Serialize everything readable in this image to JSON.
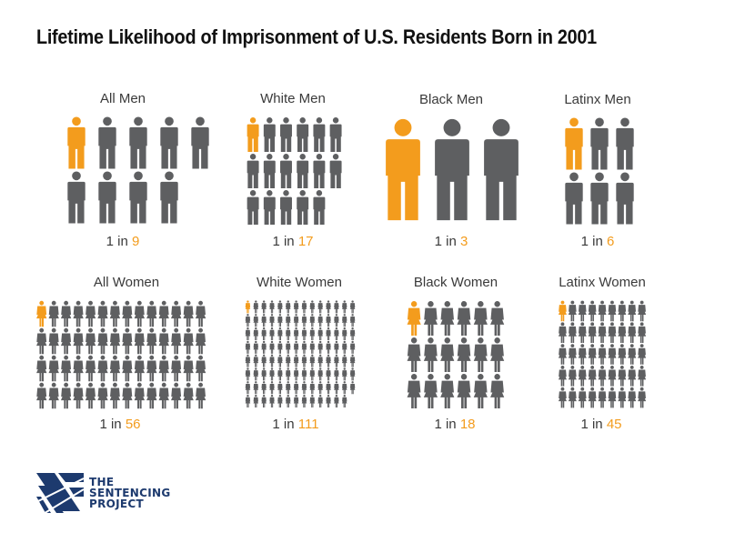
{
  "colors": {
    "highlight": "#f39c1d",
    "figure": "#5e5f61",
    "brand": "#1d3a6e"
  },
  "chart_data": {
    "type": "pictograph",
    "title": "Lifetime Likelihood of Imprisonment of U.S. Residents Born in 2001",
    "panels": [
      {
        "id": "all-men",
        "label": "All Men",
        "prefix": "1 in ",
        "value": 9,
        "figure": "man"
      },
      {
        "id": "white-men",
        "label": "White Men",
        "prefix": "1 in ",
        "value": 17,
        "figure": "man"
      },
      {
        "id": "black-men",
        "label": "Black Men",
        "prefix": "1 in ",
        "value": 3,
        "figure": "man"
      },
      {
        "id": "latinx-men",
        "label": "Latinx Men",
        "prefix": "1 in ",
        "value": 6,
        "figure": "man"
      },
      {
        "id": "all-women",
        "label": "All Women",
        "prefix": "1 in ",
        "value": 56,
        "figure": "woman"
      },
      {
        "id": "white-women",
        "label": "White Women",
        "prefix": "1 in ",
        "value": 111,
        "figure": "woman"
      },
      {
        "id": "black-women",
        "label": "Black Women",
        "prefix": "1 in ",
        "value": 18,
        "figure": "woman"
      },
      {
        "id": "latinx-women",
        "label": "Latinx Women",
        "prefix": "1 in ",
        "value": 45,
        "figure": "woman"
      }
    ]
  },
  "logo": {
    "line1": "THE",
    "line2": "SENTENCING",
    "line3": "PROJECT"
  }
}
